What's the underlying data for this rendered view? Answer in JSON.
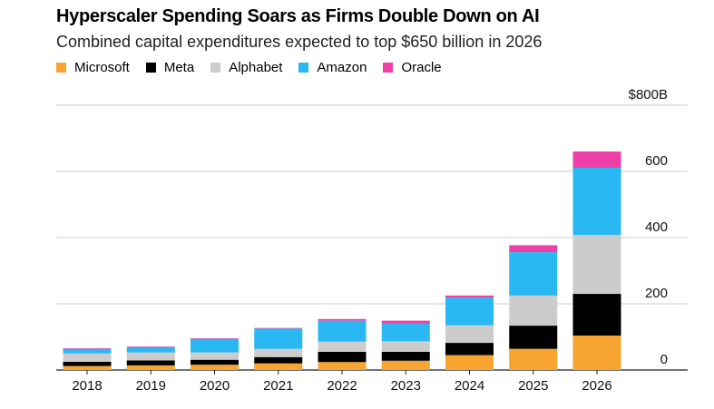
{
  "title": "Hyperscaler Spending Soars as Firms Double Down on AI",
  "subtitle": "Combined capital expenditures expected to top $650 billion in 2026",
  "chart_data": {
    "type": "bar",
    "stacked": true,
    "title": "Hyperscaler Spending Soars as Firms Double Down on AI",
    "subtitle": "Combined capital expenditures expected to top $650 billion in 2026",
    "xlabel": "",
    "ylabel": "",
    "ylim": [
      0,
      800
    ],
    "yticks": [
      0,
      200,
      400,
      600,
      800
    ],
    "ytick_labels": [
      "0",
      "200",
      "400",
      "600",
      "$800B"
    ],
    "grid": true,
    "legend_position": "top-left",
    "categories": [
      "2018",
      "2019",
      "2020",
      "2021",
      "2022",
      "2023",
      "2024",
      "2025",
      "2026"
    ],
    "series": [
      {
        "name": "Microsoft",
        "color": "#f7a431",
        "values": [
          12,
          14,
          16,
          20,
          24,
          28,
          45,
          64,
          104
        ]
      },
      {
        "name": "Meta",
        "color": "#000000",
        "values": [
          13,
          15,
          15,
          19,
          31,
          27,
          37,
          70,
          126
        ]
      },
      {
        "name": "Alphabet",
        "color": "#cccccc",
        "values": [
          25,
          24,
          22,
          25,
          31,
          32,
          53,
          91,
          178
        ]
      },
      {
        "name": "Amazon",
        "color": "#29b8f2",
        "values": [
          14,
          16,
          41,
          61,
          63,
          53,
          84,
          131,
          203
        ]
      },
      {
        "name": "Oracle",
        "color": "#ee3fa7",
        "values": [
          2,
          2,
          2,
          2,
          5,
          9,
          6,
          21,
          49
        ]
      }
    ]
  }
}
